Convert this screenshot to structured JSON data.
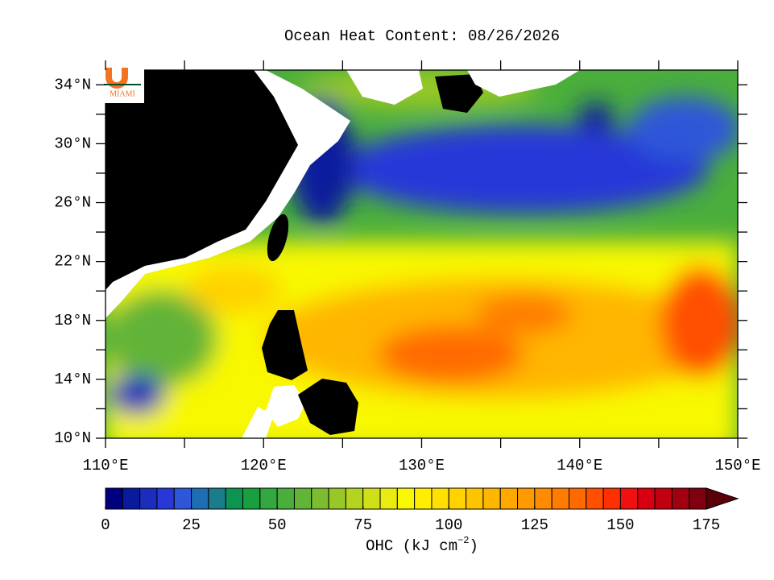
{
  "title": "Ocean Heat Content: 08/26/2026",
  "logo": {
    "text": "MIAMI"
  },
  "map": {
    "xlim": [
      110,
      150
    ],
    "ylim": [
      10,
      35
    ],
    "xticks": [
      {
        "value": 110,
        "label": "110°E"
      },
      {
        "value": 120,
        "label": "120°E"
      },
      {
        "value": 130,
        "label": "130°E"
      },
      {
        "value": 140,
        "label": "140°E"
      },
      {
        "value": 150,
        "label": "150°E"
      }
    ],
    "xminorticks": [
      115,
      125,
      135,
      145
    ],
    "yticks": [
      {
        "value": 10,
        "label": "10°N"
      },
      {
        "value": 14,
        "label": "14°N"
      },
      {
        "value": 18,
        "label": "18°N"
      },
      {
        "value": 22,
        "label": "22°N"
      },
      {
        "value": 26,
        "label": "26°N"
      },
      {
        "value": 30,
        "label": "30°N"
      },
      {
        "value": 34,
        "label": "34°N"
      }
    ],
    "yminorticks": [
      12,
      16,
      20,
      24,
      28,
      32
    ]
  },
  "colorbar": {
    "lim": [
      0,
      175
    ],
    "ticks": [
      0,
      25,
      50,
      75,
      100,
      125,
      150,
      175
    ],
    "colors": [
      "#00007f",
      "#0a1a9c",
      "#1b2dbc",
      "#2838d8",
      "#2e56d8",
      "#1e6eb4",
      "#1a7d8a",
      "#0c9450",
      "#18a040",
      "#33a840",
      "#4aae3c",
      "#62b438",
      "#7cbc30",
      "#98c828",
      "#b4d420",
      "#d0e018",
      "#e8ec10",
      "#f8f800",
      "#ffee00",
      "#ffe000",
      "#ffd200",
      "#ffc400",
      "#ffb600",
      "#ffa800",
      "#ff9a00",
      "#ff8c00",
      "#ff7c00",
      "#ff6a00",
      "#ff5000",
      "#ff3000",
      "#f01010",
      "#d80010",
      "#c00010",
      "#a00010",
      "#800010"
    ],
    "extend_color": "#5a0008",
    "label": [
      "OHC (kJ cm",
      "−2",
      ")"
    ]
  }
}
